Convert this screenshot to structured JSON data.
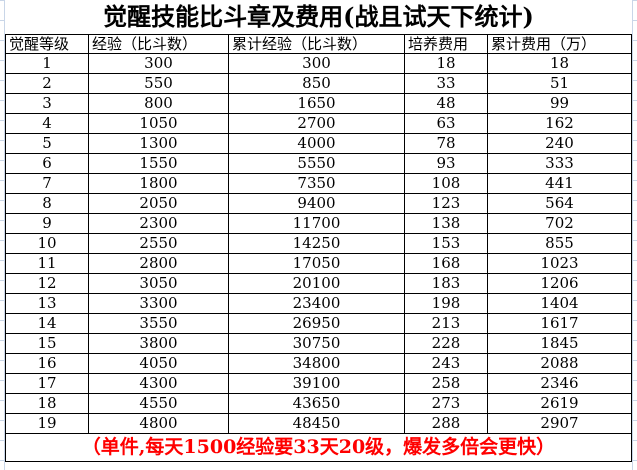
{
  "title": "觉醒技能比斗章及费用(战且试天下统计)",
  "headers": [
    "觉醒等级",
    "经验（比斗数）",
    "累计经验（比斗数）",
    "培养费用",
    "累计费用（万）"
  ],
  "rows": [
    [
      "1",
      "300",
      "300",
      "18",
      "18"
    ],
    [
      "2",
      "550",
      "850",
      "33",
      "51"
    ],
    [
      "3",
      "800",
      "1650",
      "48",
      "99"
    ],
    [
      "4",
      "1050",
      "2700",
      "63",
      "162"
    ],
    [
      "5",
      "1300",
      "4000",
      "78",
      "240"
    ],
    [
      "6",
      "1550",
      "5550",
      "93",
      "333"
    ],
    [
      "7",
      "1800",
      "7350",
      "108",
      "441"
    ],
    [
      "8",
      "2050",
      "9400",
      "123",
      "564"
    ],
    [
      "9",
      "2300",
      "11700",
      "138",
      "702"
    ],
    [
      "10",
      "2550",
      "14250",
      "153",
      "855"
    ],
    [
      "11",
      "2800",
      "17050",
      "168",
      "1023"
    ],
    [
      "12",
      "3050",
      "20100",
      "183",
      "1206"
    ],
    [
      "13",
      "3300",
      "23400",
      "198",
      "1404"
    ],
    [
      "14",
      "3550",
      "26950",
      "213",
      "1617"
    ],
    [
      "15",
      "3800",
      "30750",
      "228",
      "1845"
    ],
    [
      "16",
      "4050",
      "34800",
      "243",
      "2088"
    ],
    [
      "17",
      "4300",
      "39100",
      "258",
      "2346"
    ],
    [
      "18",
      "4550",
      "43650",
      "273",
      "2619"
    ],
    [
      "19",
      "4800",
      "48450",
      "288",
      "2907"
    ]
  ],
  "footer": "（单件,每天1500经验要33天20级，爆发多倍会更快）",
  "colors": {
    "footer_text": "#ff0000",
    "gridline": "#c9d6e8"
  }
}
